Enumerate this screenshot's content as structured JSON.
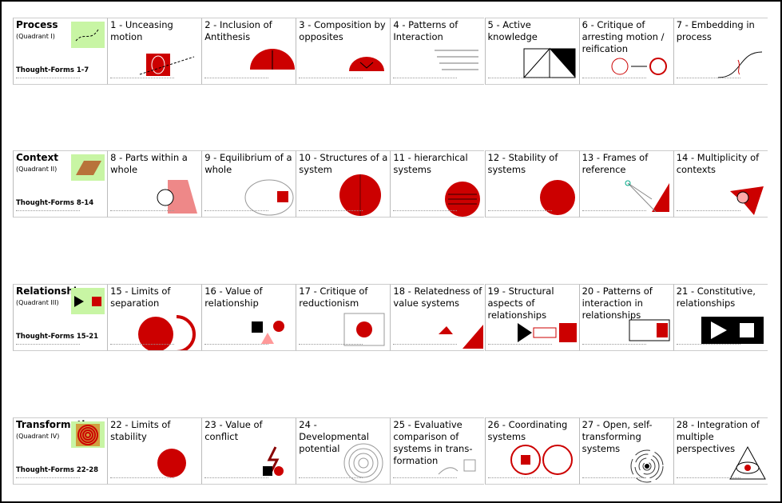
{
  "quadrants": [
    {
      "title": "Process",
      "subtitle": "(Quadrant I)",
      "forms": "Thought-Forms 1-7",
      "cards": [
        "1 - Unceasing motion",
        "2 - Inclusion of Antithesis",
        "3 - Composition by opposites",
        "4 - Patterns of Interaction",
        "5 - Active knowledge",
        "6 - Critique of arresting motion / reification",
        "7 - Embedding in process"
      ]
    },
    {
      "title": "Context",
      "subtitle": "(Quadrant II)",
      "forms": "Thought-Forms 8-14",
      "cards": [
        "8 - Parts within a whole",
        "9 - Equilibrium of a whole",
        "10 - Structures of a system",
        "11 - hierarchical systems",
        "12 - Stability of systems",
        "13 - Frames of reference",
        "14 - Multiplicity of contexts"
      ]
    },
    {
      "title": "Relationship",
      "subtitle": "(Quadrant III)",
      "forms": "Thought-Forms 15-21",
      "cards": [
        "15 - Limits of separation",
        "16 - Value of relationship",
        "17 - Critique of reductionism",
        "18 - Relatedness of value systems",
        "19 - Structural aspects of relationships",
        "20 - Patterns of interaction in relationships",
        "21 - Constitutive, relationships"
      ]
    },
    {
      "title": "Transformation",
      "subtitle": "(Quadrant IV)",
      "forms": "Thought-Forms 22-28",
      "cards": [
        "22 - Limits of stability",
        "23 - Value of conflict",
        "24 - Developmental potential",
        "25 - Evaluative comparison of systems in trans-formation",
        "26 - Coordinating systems",
        "27 - Open, self-transforming systems",
        "28 - Integration of multiple perspectives"
      ]
    }
  ]
}
